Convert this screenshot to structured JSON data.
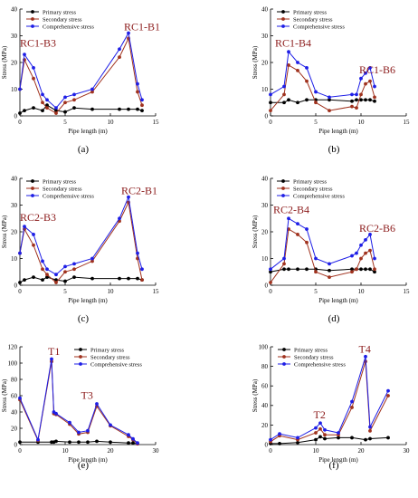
{
  "series_styles": [
    {
      "color": "#000000",
      "marker": "circle"
    },
    {
      "color": "#a0321e",
      "marker": "circle"
    },
    {
      "color": "#1e1ee6",
      "marker": "circle"
    }
  ],
  "chart_data": [
    {
      "type": "line",
      "panel_label": "(a)",
      "xlabel": "Pipe length (m)",
      "ylabel": "Stress (MPa)",
      "xlim": [
        0,
        15
      ],
      "ylim": [
        0,
        40
      ],
      "xticks": [
        0,
        5,
        10,
        15
      ],
      "yticks": [
        0,
        10,
        20,
        30,
        40
      ],
      "legend": "top",
      "annotations": [
        {
          "text": "RC1-B3",
          "x": 0.0,
          "y": 26
        },
        {
          "text": "RC1-B1",
          "x": 11.5,
          "y": 32
        }
      ],
      "series": [
        {
          "name": "Primary stress",
          "x": [
            0,
            0.5,
            1.5,
            2.5,
            3,
            4,
            5,
            6,
            8,
            11,
            12,
            13,
            13.5
          ],
          "y": [
            1,
            2,
            3,
            2,
            4,
            2,
            1.5,
            3,
            2.5,
            2.5,
            2.5,
            2.5,
            2
          ]
        },
        {
          "name": "Secondary stress",
          "x": [
            0,
            0.5,
            1.5,
            2.5,
            3,
            4,
            5,
            6,
            8,
            11,
            12,
            13,
            13.5
          ],
          "y": [
            10,
            21,
            14,
            5,
            3,
            1,
            5,
            6,
            9,
            22,
            29,
            9,
            4
          ]
        },
        {
          "name": "Comprehensive stress",
          "x": [
            0,
            0.5,
            1.5,
            2.5,
            3,
            4,
            5,
            6,
            8,
            11,
            12,
            13,
            13.5
          ],
          "y": [
            10,
            23,
            18,
            8,
            6,
            3,
            7,
            8,
            10,
            25,
            31,
            12,
            6
          ]
        }
      ]
    },
    {
      "type": "line",
      "panel_label": "(b)",
      "xlabel": "Pipe length (m)",
      "ylabel": "Stress (MPa)",
      "xlim": [
        0,
        15
      ],
      "ylim": [
        0,
        40
      ],
      "xticks": [
        0,
        5,
        10,
        15
      ],
      "yticks": [
        0,
        10,
        20,
        30,
        40
      ],
      "legend": "top",
      "annotations": [
        {
          "text": "RC1-B4",
          "x": 0.5,
          "y": 26
        },
        {
          "text": "RC1-B6",
          "x": 9.8,
          "y": 16
        }
      ],
      "series": [
        {
          "name": "Primary stress",
          "x": [
            0,
            1.5,
            2,
            3,
            4,
            5,
            6.5,
            9,
            9.5,
            10,
            10.5,
            11,
            11.5
          ],
          "y": [
            5,
            5,
            6,
            5,
            6,
            6,
            6,
            5.5,
            6,
            6,
            6,
            6,
            5.5
          ]
        },
        {
          "name": "Secondary stress",
          "x": [
            0,
            1.5,
            2,
            3,
            4,
            5,
            6.5,
            9,
            9.5,
            10,
            10.5,
            11,
            11.5
          ],
          "y": [
            2,
            8,
            19,
            17,
            13,
            5,
            2,
            3.5,
            3,
            8,
            12,
            13,
            7
          ]
        },
        {
          "name": "Comprehensive stress",
          "x": [
            0,
            1.5,
            2,
            3,
            4,
            5,
            6.5,
            9,
            9.5,
            10,
            10.5,
            11,
            11.5
          ],
          "y": [
            8,
            11,
            24,
            20,
            18,
            9,
            7,
            8,
            8,
            14,
            16,
            18,
            11
          ]
        }
      ]
    },
    {
      "type": "line",
      "panel_label": "(c)",
      "xlabel": "Pipe length (m)",
      "ylabel": "Stress (MPa)",
      "xlim": [
        0,
        15
      ],
      "ylim": [
        0,
        40
      ],
      "xticks": [
        0,
        5,
        10,
        15
      ],
      "yticks": [
        0,
        10,
        20,
        30,
        40
      ],
      "legend": "top",
      "annotations": [
        {
          "text": "RC2-B3",
          "x": 0.0,
          "y": 24
        },
        {
          "text": "RC2-B1",
          "x": 11.2,
          "y": 34
        }
      ],
      "series": [
        {
          "name": "Primary stress",
          "x": [
            0,
            0.5,
            1.5,
            2.5,
            3,
            4,
            5,
            6,
            8,
            11,
            12,
            13,
            13.5
          ],
          "y": [
            1,
            2,
            3,
            2,
            3,
            2,
            1.5,
            3,
            2.5,
            2.5,
            2.5,
            2.5,
            2
          ]
        },
        {
          "name": "Secondary stress",
          "x": [
            0,
            0.5,
            1.5,
            2.5,
            3,
            4,
            5,
            6,
            8,
            11,
            12,
            13,
            13.5
          ],
          "y": [
            12,
            21,
            15,
            6,
            4,
            1,
            5,
            6,
            9,
            24,
            31,
            10,
            2
          ]
        },
        {
          "name": "Comprehensive stress",
          "x": [
            0,
            0.5,
            1.5,
            2.5,
            3,
            4,
            5,
            6,
            8,
            11,
            12,
            13,
            13.5
          ],
          "y": [
            12,
            22,
            19,
            9,
            6,
            4,
            7,
            8,
            10,
            25,
            33,
            12,
            6
          ]
        }
      ]
    },
    {
      "type": "line",
      "panel_label": "(d)",
      "xlabel": "Pipe length (m)",
      "ylabel": "Stress (MPa)",
      "xlim": [
        0,
        15
      ],
      "ylim": [
        0,
        40
      ],
      "xticks": [
        0,
        5,
        10,
        15
      ],
      "yticks": [
        0,
        10,
        20,
        30,
        40
      ],
      "legend": "top",
      "annotations": [
        {
          "text": "RC2-B4",
          "x": 0.3,
          "y": 27
        },
        {
          "text": "RC2-B6",
          "x": 9.8,
          "y": 20
        }
      ],
      "series": [
        {
          "name": "Primary stress",
          "x": [
            0,
            1.5,
            2,
            3,
            4,
            5,
            6.5,
            9,
            9.5,
            10,
            10.5,
            11,
            11.5
          ],
          "y": [
            5,
            6,
            6,
            6,
            6,
            6,
            5.5,
            6,
            6,
            6,
            6,
            6,
            5
          ]
        },
        {
          "name": "Secondary stress",
          "x": [
            0,
            1.5,
            2,
            3,
            4,
            5,
            6.5,
            9,
            9.5,
            10,
            10.5,
            11,
            11.5
          ],
          "y": [
            1,
            8,
            21,
            19,
            16,
            5,
            3,
            5,
            6,
            10,
            12,
            13,
            6
          ]
        },
        {
          "name": "Comprehensive stress",
          "x": [
            0,
            1.5,
            2,
            3,
            4,
            5,
            6.5,
            9,
            9.5,
            10,
            10.5,
            11,
            11.5
          ],
          "y": [
            6,
            10,
            25,
            23,
            21,
            10,
            8,
            11,
            12,
            15,
            17,
            19,
            10
          ]
        }
      ]
    },
    {
      "type": "line",
      "panel_label": "(e)",
      "xlabel": "Pipe length (m)",
      "ylabel": "Stress (MPa)",
      "xlim": [
        0,
        30
      ],
      "ylim": [
        0,
        120
      ],
      "xticks": [
        0,
        10,
        20,
        30
      ],
      "yticks": [
        0,
        20,
        40,
        60,
        80,
        100,
        120
      ],
      "legend": "top-right",
      "annotations": [
        {
          "text": "T1",
          "x": 6.2,
          "y": 110
        },
        {
          "text": "T3",
          "x": 13.5,
          "y": 56
        }
      ],
      "series": [
        {
          "name": "Primary stress",
          "x": [
            0,
            4,
            7,
            7.5,
            8,
            11,
            13,
            15,
            17,
            20,
            24,
            25,
            26
          ],
          "y": [
            3,
            3,
            3,
            3,
            4,
            3,
            3,
            3,
            4,
            3,
            2,
            2,
            1
          ]
        },
        {
          "name": "Secondary stress",
          "x": [
            0,
            4,
            7,
            7.5,
            8,
            11,
            13,
            15,
            17,
            20,
            24,
            25,
            26
          ],
          "y": [
            55,
            5,
            102,
            38,
            37,
            25,
            13,
            15,
            47,
            23,
            10,
            6,
            1
          ]
        },
        {
          "name": "Comprehensive stress",
          "x": [
            0,
            4,
            7,
            7.5,
            8,
            11,
            13,
            15,
            17,
            20,
            24,
            25,
            26
          ],
          "y": [
            57,
            6,
            105,
            40,
            38,
            27,
            15,
            17,
            50,
            24,
            12,
            7,
            2
          ]
        }
      ]
    },
    {
      "type": "line",
      "panel_label": "(f)",
      "xlabel": "Pipe length (m)",
      "ylabel": "Stress (MPa)",
      "xlim": [
        0,
        30
      ],
      "ylim": [
        0,
        100
      ],
      "xticks": [
        0,
        10,
        20,
        30
      ],
      "yticks": [
        0,
        20,
        40,
        60,
        80,
        100
      ],
      "legend": "top-left",
      "annotations": [
        {
          "text": "T4",
          "x": 19.5,
          "y": 94
        },
        {
          "text": "T2",
          "x": 9.5,
          "y": 27
        }
      ],
      "series": [
        {
          "name": "Primary stress",
          "x": [
            0,
            2,
            6,
            10,
            11,
            12,
            15,
            18,
            21,
            22,
            26
          ],
          "y": [
            1,
            1,
            2,
            5,
            8,
            6,
            7,
            7,
            5,
            6,
            7
          ]
        },
        {
          "name": "Secondary stress",
          "x": [
            0,
            2,
            6,
            10,
            11,
            12,
            15,
            18,
            21,
            22,
            26
          ],
          "y": [
            3,
            9,
            5,
            12,
            16,
            10,
            10,
            38,
            85,
            14,
            50
          ]
        },
        {
          "name": "Comprehensive stress",
          "x": [
            0,
            2,
            6,
            10,
            11,
            12,
            15,
            18,
            21,
            22,
            26
          ],
          "y": [
            5,
            11,
            7,
            17,
            22,
            15,
            12,
            44,
            90,
            18,
            55
          ]
        }
      ]
    }
  ]
}
